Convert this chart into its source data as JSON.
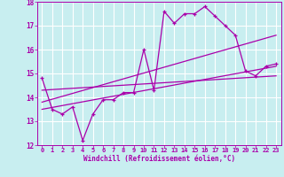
{
  "xlabel": "Windchill (Refroidissement éolien,°C)",
  "background_color": "#c8eef0",
  "grid_color": "#ffffff",
  "line_color": "#aa00aa",
  "xlim": [
    -0.5,
    23.5
  ],
  "ylim": [
    12,
    18
  ],
  "yticks": [
    12,
    13,
    14,
    15,
    16,
    17,
    18
  ],
  "xticks": [
    0,
    1,
    2,
    3,
    4,
    5,
    6,
    7,
    8,
    9,
    10,
    11,
    12,
    13,
    14,
    15,
    16,
    17,
    18,
    19,
    20,
    21,
    22,
    23
  ],
  "series1_x": [
    0,
    1,
    2,
    3,
    4,
    5,
    6,
    7,
    8,
    9,
    10,
    11,
    12,
    13,
    14,
    15,
    16,
    17,
    18,
    19,
    20,
    21,
    22,
    23
  ],
  "series1_y": [
    14.8,
    13.5,
    13.3,
    13.6,
    12.2,
    13.3,
    13.9,
    13.9,
    14.2,
    14.2,
    16.0,
    14.3,
    17.6,
    17.1,
    17.5,
    17.5,
    17.8,
    17.4,
    17.0,
    16.6,
    15.1,
    14.9,
    15.3,
    15.4
  ],
  "series2_x": [
    0,
    23
  ],
  "series2_y": [
    13.5,
    15.3
  ],
  "series3_x": [
    0,
    23
  ],
  "series3_y": [
    13.8,
    16.6
  ],
  "series4_x": [
    0,
    23
  ],
  "series4_y": [
    14.3,
    14.9
  ]
}
